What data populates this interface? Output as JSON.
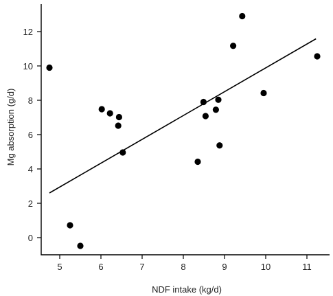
{
  "chart_data": {
    "type": "scatter",
    "title": "",
    "xlabel": "NDF intake (kg/d)",
    "ylabel": "Mg absorption (g/d)",
    "xlim": [
      4.55,
      11.55
    ],
    "ylim": [
      -1.0,
      13.6
    ],
    "xticks": [
      5,
      6,
      7,
      8,
      9,
      10,
      11
    ],
    "yticks": [
      0,
      2,
      4,
      6,
      8,
      10,
      12
    ],
    "grid": false,
    "points": [
      {
        "x": 4.75,
        "y": 9.9
      },
      {
        "x": 5.25,
        "y": 0.72
      },
      {
        "x": 5.5,
        "y": -0.48
      },
      {
        "x": 6.02,
        "y": 7.48
      },
      {
        "x": 6.22,
        "y": 7.24
      },
      {
        "x": 6.42,
        "y": 6.52
      },
      {
        "x": 6.44,
        "y": 7.02
      },
      {
        "x": 6.53,
        "y": 4.96
      },
      {
        "x": 8.35,
        "y": 4.42
      },
      {
        "x": 8.49,
        "y": 7.9
      },
      {
        "x": 8.54,
        "y": 7.08
      },
      {
        "x": 8.79,
        "y": 7.45
      },
      {
        "x": 8.85,
        "y": 8.03
      },
      {
        "x": 8.88,
        "y": 5.37
      },
      {
        "x": 9.21,
        "y": 11.17
      },
      {
        "x": 9.43,
        "y": 12.9
      },
      {
        "x": 9.95,
        "y": 8.42
      },
      {
        "x": 11.25,
        "y": 10.56
      }
    ],
    "fit_line": {
      "x": [
        4.75,
        11.22
      ],
      "y": [
        2.6,
        11.58
      ]
    }
  }
}
